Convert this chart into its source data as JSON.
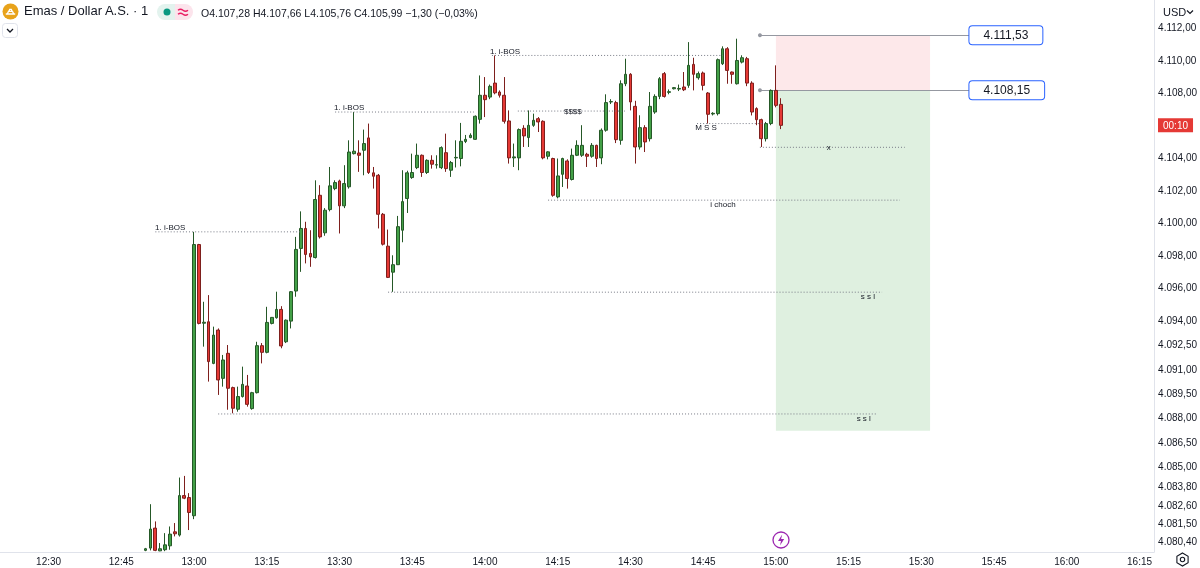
{
  "chart_data": {
    "type": "candlestick",
    "title": "Emas / Dollar A.S. · 1",
    "subtitle": "O4.107,28 H4.107,66 L4.105,76 C4.105,99 −1,30 (−0,03%)",
    "ylabel": "USD",
    "x": [
      12.8333,
      12.85,
      12.8667,
      12.8833,
      12.9,
      12.9167,
      12.9333,
      12.95,
      12.9667,
      12.9833,
      13,
      13.0167,
      13.0333,
      13.05,
      13.0667,
      13.0833,
      13.1,
      13.1167,
      13.1333,
      13.15,
      13.1667,
      13.1833,
      13.2,
      13.2167,
      13.2333,
      13.25,
      13.2667,
      13.2833,
      13.3,
      13.3167,
      13.3333,
      13.35,
      13.3667,
      13.3833,
      13.4,
      13.4167,
      13.4333,
      13.45,
      13.4667,
      13.4833,
      13.5,
      13.5167,
      13.5333,
      13.55,
      13.5667,
      13.5833,
      13.6,
      13.6167,
      13.6333,
      13.65,
      13.6667,
      13.6833,
      13.7,
      13.7167,
      13.7333,
      13.75,
      13.7667,
      13.7833,
      13.8,
      13.8167,
      13.8333,
      13.85,
      13.8667,
      13.8833,
      13.9,
      13.9167,
      13.9333,
      13.95,
      13.9667,
      13.9833,
      14,
      14.0167,
      14.0333,
      14.05,
      14.0667,
      14.0833,
      14.1,
      14.1167,
      14.1333,
      14.15,
      14.1667,
      14.1833,
      14.2,
      14.2167,
      14.2333,
      14.25,
      14.2667,
      14.2833,
      14.3,
      14.3167,
      14.3333,
      14.35,
      14.3667,
      14.3833,
      14.4,
      14.4167,
      14.4333,
      14.45,
      14.4667,
      14.4833,
      14.5,
      14.5167,
      14.5333,
      14.55,
      14.5667,
      14.5833,
      14.6,
      14.6167,
      14.6333,
      14.65,
      14.6667,
      14.6833,
      14.7,
      14.7167,
      14.7333,
      14.75,
      14.7667,
      14.7833,
      14.8,
      14.8167,
      14.8333,
      14.85,
      14.8667,
      14.8833,
      14.9,
      14.9167,
      14.9333,
      14.95,
      14.9667,
      14.9833,
      15,
      15.0167
    ],
    "ohlc": [
      [
        4079.85,
        4080.0,
        4079.8,
        4079.95
      ],
      [
        4079.99,
        4082.69,
        4079.85,
        4081.16
      ],
      [
        4081.22,
        4081.63,
        4079.8,
        4079.85
      ],
      [
        4079.82,
        4080.3,
        4079.8,
        4079.95
      ],
      [
        4079.89,
        4080.91,
        4079.8,
        4080.19
      ],
      [
        4080.13,
        4081.32,
        4079.89,
        4080.85
      ],
      [
        4080.99,
        4081.53,
        4080.71,
        4080.87
      ],
      [
        4080.79,
        4084.33,
        4080.7,
        4083.22
      ],
      [
        4083.22,
        4084.43,
        4083.0,
        4083.06
      ],
      [
        4083.1,
        4083.37,
        4081.1,
        4082.18
      ],
      [
        4081.98,
        4099.44,
        4081.77,
        4098.66
      ],
      [
        4098.66,
        4098.7,
        4093.75,
        4093.81
      ],
      [
        4093.82,
        4095.14,
        4092.38,
        4093.88
      ],
      [
        4093.91,
        4095.55,
        4090.23,
        4091.46
      ],
      [
        4091.35,
        4093.61,
        4091.3,
        4093.09
      ],
      [
        4093.4,
        4093.5,
        4089.41,
        4090.33
      ],
      [
        4090.43,
        4091.87,
        4089.92,
        4091.56
      ],
      [
        4091.97,
        4092.48,
        4088.5,
        4089.82
      ],
      [
        4089.86,
        4089.92,
        4088.28,
        4088.59
      ],
      [
        4088.53,
        4089.92,
        4088.38,
        4089.31
      ],
      [
        4089.31,
        4091.15,
        4089.25,
        4090.06
      ],
      [
        4089.96,
        4090.64,
        4088.69,
        4088.83
      ],
      [
        4088.57,
        4089.6,
        4088.5,
        4089.55
      ],
      [
        4089.55,
        4092.68,
        4089.5,
        4092.44
      ],
      [
        4092.44,
        4092.6,
        4091.35,
        4092.03
      ],
      [
        4092.03,
        4094.83,
        4091.97,
        4093.87
      ],
      [
        4093.81,
        4094.2,
        4093.75,
        4094.18
      ],
      [
        4094.16,
        4095.76,
        4094.1,
        4094.67
      ],
      [
        4094.67,
        4094.87,
        4092.28,
        4092.42
      ],
      [
        4092.68,
        4094.05,
        4092.6,
        4094.01
      ],
      [
        4093.95,
        4095.8,
        4093.5,
        4095.76
      ],
      [
        4095.8,
        4099.13,
        4095.45,
        4098.36
      ],
      [
        4098.42,
        4100.7,
        4096.98,
        4099.65
      ],
      [
        4099.65,
        4100.06,
        4097.5,
        4098.05
      ],
      [
        4098.11,
        4099.54,
        4097.29,
        4097.9
      ],
      [
        4097.86,
        4102.61,
        4097.8,
        4101.43
      ],
      [
        4101.69,
        4102.31,
        4099.03,
        4099.13
      ],
      [
        4099.38,
        4100.9,
        4099.2,
        4100.77
      ],
      [
        4100.81,
        4103.43,
        4100.7,
        4102.27
      ],
      [
        4102.1,
        4102.61,
        4102.0,
        4102.47
      ],
      [
        4102.57,
        4102.65,
        4099.34,
        4101.04
      ],
      [
        4101.04,
        4103.54,
        4100.9,
        4102.41
      ],
      [
        4102.21,
        4105.07,
        4102.1,
        4104.35
      ],
      [
        4104.25,
        4106.81,
        4104.2,
        4104.4
      ],
      [
        4104.29,
        4105.07,
        4103.13,
        4104.15
      ],
      [
        4104.46,
        4105.73,
        4102.92,
        4104.87
      ],
      [
        4105.22,
        4106.1,
        4103.0,
        4103.09
      ],
      [
        4103.07,
        4103.43,
        4102.1,
        4102.86
      ],
      [
        4102.92,
        4103.0,
        4099.65,
        4100.52
      ],
      [
        4100.52,
        4100.6,
        4098.6,
        4098.68
      ],
      [
        4098.56,
        4099.58,
        4096.6,
        4096.64
      ],
      [
        4096.96,
        4098.0,
        4095.75,
        4097.42
      ],
      [
        4097.42,
        4100.42,
        4097.4,
        4099.76
      ],
      [
        4099.54,
        4103.23,
        4098.8,
        4101.3
      ],
      [
        4101.49,
        4103.2,
        4100.6,
        4103.07
      ],
      [
        4102.78,
        4104.25,
        4102.7,
        4103.09
      ],
      [
        4103.39,
        4104.87,
        4103.3,
        4104.15
      ],
      [
        4104.15,
        4104.2,
        4102.82,
        4103.09
      ],
      [
        4103.09,
        4103.9,
        4103.0,
        4103.84
      ],
      [
        4103.84,
        4104.15,
        4103.33,
        4103.6
      ],
      [
        4103.55,
        4104.15,
        4103.33,
        4103.57
      ],
      [
        4103.39,
        4104.7,
        4103.3,
        4104.62
      ],
      [
        4104.31,
        4105.48,
        4103.13,
        4103.33
      ],
      [
        4103.23,
        4103.8,
        4102.82,
        4103.7
      ],
      [
        4103.99,
        4105.07,
        4103.4,
        4104.02
      ],
      [
        4103.95,
        4106.14,
        4103.47,
        4105.01
      ],
      [
        4105.0,
        4105.4,
        4104.9,
        4105.13
      ],
      [
        4105.24,
        4105.5,
        4105.2,
        4105.38
      ],
      [
        4105.13,
        4106.6,
        4105.1,
        4106.55
      ],
      [
        4106.36,
        4109.06,
        4106.1,
        4107.84
      ],
      [
        4107.84,
        4108.96,
        4106.5,
        4107.57
      ],
      [
        4107.73,
        4108.5,
        4107.6,
        4108.39
      ],
      [
        4108.59,
        4110.29,
        4107.9,
        4107.99
      ],
      [
        4108.04,
        4108.14,
        4107.7,
        4107.84
      ],
      [
        4107.84,
        4108.96,
        4106.1,
        4106.24
      ],
      [
        4106.26,
        4106.91,
        4103.64,
        4103.99
      ],
      [
        4103.99,
        4104.87,
        4103.43,
        4104.05
      ],
      [
        4103.99,
        4105.8,
        4103.23,
        4105.73
      ],
      [
        4105.81,
        4106.0,
        4104.66,
        4105.34
      ],
      [
        4105.24,
        4106.91,
        4104.66,
        4105.99
      ],
      [
        4105.99,
        4106.71,
        4105.9,
        4106.3
      ],
      [
        4106.4,
        4106.5,
        4105.58,
        4106.2
      ],
      [
        4106.24,
        4106.3,
        4103.9,
        4103.99
      ],
      [
        4104.09,
        4104.4,
        4103.9,
        4104.36
      ],
      [
        4103.95,
        4104.0,
        4101.6,
        4101.69
      ],
      [
        4101.59,
        4103.95,
        4101.5,
        4102.88
      ],
      [
        4102.98,
        4104.0,
        4102.2,
        4103.95
      ],
      [
        4103.8,
        4103.9,
        4102.1,
        4102.72
      ],
      [
        4102.66,
        4104.56,
        4102.6,
        4104.15
      ],
      [
        4104.15,
        4105.07,
        4104.1,
        4104.76
      ],
      [
        4104.15,
        4106.0,
        4104.05,
        4104.76
      ],
      [
        4104.21,
        4104.3,
        4103.43,
        4104.09
      ],
      [
        4104.09,
        4104.9,
        4104.0,
        4104.76
      ],
      [
        4104.76,
        4104.8,
        4103.43,
        4103.95
      ],
      [
        4103.99,
        4105.8,
        4103.6,
        4105.69
      ],
      [
        4105.69,
        4107.9,
        4105.6,
        4107.39
      ],
      [
        4107.43,
        4107.6,
        4107.3,
        4107.45
      ],
      [
        4107.39,
        4107.5,
        4104.9,
        4105.11
      ],
      [
        4105.07,
        4108.76,
        4104.8,
        4108.55
      ],
      [
        4108.55,
        4110.09,
        4108.4,
        4109.13
      ],
      [
        4109.13,
        4109.2,
        4106.91,
        4107.43
      ],
      [
        4107.16,
        4107.5,
        4103.64,
        4104.66
      ],
      [
        4104.66,
        4106.61,
        4104.5,
        4105.85
      ],
      [
        4105.85,
        4106.0,
        4104.35,
        4104.97
      ],
      [
        4105.17,
        4108.04,
        4105.0,
        4107.16
      ],
      [
        4106.81,
        4107.9,
        4106.7,
        4107.77
      ],
      [
        4107.77,
        4108.96,
        4107.6,
        4108.86
      ],
      [
        4109.17,
        4109.27,
        4107.7,
        4107.77
      ],
      [
        4108.02,
        4108.2,
        4107.9,
        4108.06
      ],
      [
        4108.24,
        4108.35,
        4108.2,
        4108.31
      ],
      [
        4108.22,
        4108.5,
        4108.1,
        4108.26
      ],
      [
        4108.35,
        4109.27,
        4108.1,
        4108.18
      ],
      [
        4108.45,
        4111.11,
        4108.3,
        4109.68
      ],
      [
        4109.74,
        4110.15,
        4108.14,
        4109.13
      ],
      [
        4108.92,
        4109.3,
        4108.8,
        4109.17
      ],
      [
        4109.21,
        4109.3,
        4108.14,
        4108.45
      ],
      [
        4107.98,
        4108.04,
        4106.1,
        4106.67
      ],
      [
        4106.69,
        4106.8,
        4106.6,
        4106.73
      ],
      [
        4106.71,
        4110.1,
        4106.6,
        4110.03
      ],
      [
        4109.78,
        4110.85,
        4109.7,
        4110.7
      ],
      [
        4110.7,
        4110.8,
        4108.55,
        4109.37
      ],
      [
        4109.27,
        4109.3,
        4108.55,
        4109.13
      ],
      [
        4108.55,
        4111.32,
        4108.5,
        4109.98
      ],
      [
        4109.88,
        4110.3,
        4109.8,
        4110.15
      ],
      [
        4110.09,
        4110.2,
        4108.4,
        4108.59
      ],
      [
        4108.59,
        4108.7,
        4106.6,
        4106.81
      ],
      [
        4107.02,
        4107.1,
        4106.0,
        4106.34
      ],
      [
        4106.34,
        4106.4,
        4104.66,
        4105.17
      ],
      [
        4105.17,
        4106.2,
        4105.0,
        4106.1
      ],
      [
        4106.1,
        4108.2,
        4106.0,
        4108.14
      ],
      [
        4108.14,
        4109.68,
        4107.1,
        4107.22
      ],
      [
        4107.28,
        4107.66,
        4105.76,
        4105.99
      ]
    ],
    "colors": [
      "#43a047",
      "#43a047",
      "#e53935",
      "#43a047",
      "#43a047",
      "#43a047",
      "#e53935",
      "#43a047",
      "#e53935",
      "#e53935",
      "#43a047",
      "#e53935",
      "#43a047",
      "#e53935",
      "#43a047",
      "#e53935",
      "#43a047",
      "#e53935",
      "#e53935",
      "#43a047",
      "#43a047",
      "#e53935",
      "#43a047",
      "#43a047",
      "#e53935",
      "#43a047",
      "#43a047",
      "#43a047",
      "#e53935",
      "#43a047",
      "#43a047",
      "#43a047",
      "#43a047",
      "#e53935",
      "#e53935",
      "#43a047",
      "#e53935",
      "#43a047",
      "#43a047",
      "#43a047",
      "#e53935",
      "#43a047",
      "#43a047",
      "#43a047",
      "#e53935",
      "#43a047",
      "#e53935",
      "#e53935",
      "#e53935",
      "#e53935",
      "#e53935",
      "#43a047",
      "#43a047",
      "#43a047",
      "#43a047",
      "#43a047",
      "#43a047",
      "#e53935",
      "#43a047",
      "#e53935",
      "#43a047",
      "#43a047",
      "#e53935",
      "#43a047",
      "#43a047",
      "#43a047",
      "#43a047",
      "#43a047",
      "#43a047",
      "#43a047",
      "#e53935",
      "#43a047",
      "#e53935",
      "#e53935",
      "#e53935",
      "#e53935",
      "#43a047",
      "#43a047",
      "#e53935",
      "#43a047",
      "#43a047",
      "#e53935",
      "#e53935",
      "#43a047",
      "#e53935",
      "#43a047",
      "#43a047",
      "#e53935",
      "#43a047",
      "#43a047",
      "#43a047",
      "#e53935",
      "#43a047",
      "#e53935",
      "#43a047",
      "#43a047",
      "#43a047",
      "#e53935",
      "#43a047",
      "#43a047",
      "#e53935",
      "#e53935",
      "#43a047",
      "#e53935",
      "#43a047",
      "#43a047",
      "#43a047",
      "#e53935",
      "#43a047",
      "#43a047",
      "#43a047",
      "#e53935",
      "#43a047",
      "#e53935",
      "#43a047",
      "#e53935",
      "#e53935",
      "#43a047",
      "#43a047",
      "#43a047",
      "#e53935",
      "#e53935",
      "#43a047",
      "#43a047",
      "#e53935",
      "#e53935",
      "#e53935",
      "#e53935",
      "#43a047",
      "#43a047",
      "#e53935",
      "#e53935"
    ],
    "series": [
      {
        "type": "line",
        "x": [
          12.867,
          13.364
        ],
        "values": [
          4099.44,
          4099.44
        ],
        "color": "#787b86",
        "line_style": "dotted"
      },
      {
        "type": "line",
        "x": [
          13.485,
          13.962
        ],
        "values": [
          4106.81,
          4106.81
        ],
        "color": "#787b86",
        "line_style": "dotted"
      },
      {
        "type": "line",
        "x": [
          14.024,
          14.818
        ],
        "values": [
          4110.29,
          4110.29
        ],
        "color": "#787b86",
        "line_style": "dotted"
      },
      {
        "type": "line",
        "x": [
          14.113,
          14.481
        ],
        "values": [
          4106.87,
          4106.87
        ],
        "color": "#787b86",
        "line_style": "dotted"
      },
      {
        "type": "line",
        "x": [
          14.729,
          14.962
        ],
        "values": [
          4106.1,
          4106.1
        ],
        "color": "#787b86",
        "line_style": "dotted"
      },
      {
        "type": "line",
        "x": [
          14.945,
          15.443
        ],
        "values": [
          4104.64,
          4104.64
        ],
        "color": "#787b86",
        "line_style": "dotted"
      },
      {
        "type": "line",
        "x": [
          14.217,
          15.426
        ],
        "values": [
          4101.39,
          4101.39
        ],
        "color": "#787b86",
        "line_style": "dotted"
      },
      {
        "type": "line",
        "x": [
          13.667,
          15.365
        ],
        "values": [
          4095.73,
          4095.73
        ],
        "color": "#787b86",
        "line_style": "dotted"
      },
      {
        "type": "line",
        "x": [
          13.083,
          15.35
        ],
        "values": [
          4088.24,
          4088.24
        ],
        "color": "#787b86",
        "line_style": "dotted"
      }
    ],
    "bands": [
      {
        "axis": "y",
        "from": 4108.15,
        "to": 4111.53,
        "color": "#fde8ea"
      },
      {
        "axis": "y",
        "from": 4087.2,
        "to": 4108.15,
        "color": "#dff0e0"
      }
    ],
    "ref_lines": [
      {
        "axis": "y",
        "value": 4111.53,
        "label": "4.111,53",
        "color": "#9598a1"
      },
      {
        "axis": "y",
        "value": 4108.15,
        "label": "4.108,15",
        "color": "#9598a1"
      }
    ],
    "annotations": [
      {
        "text": "1. i-BOS",
        "x": 12.918,
        "y": 4099.71
      },
      {
        "text": "1. i-BOS",
        "x": 13.533,
        "y": 4107.08
      },
      {
        "text": "1. i-BOS",
        "x": 14.069,
        "y": 4110.56
      },
      {
        "text": "$$$$",
        "x": 14.302,
        "y": 4106.87
      },
      {
        "text": "M S S",
        "x": 14.76,
        "y": 4105.84
      },
      {
        "text": "x",
        "x": 15.182,
        "y": 4104.64
      },
      {
        "text": "i choch",
        "x": 14.818,
        "y": 4101.12
      },
      {
        "text": "s s l",
        "x": 15.316,
        "y": 4095.46
      },
      {
        "text": "s s l",
        "x": 15.302,
        "y": 4087.97
      },
      "00:10"
    ],
    "xlim": [
      12.333,
      16.3
    ],
    "xticks": [
      {
        "value": 12.5,
        "label": "12:30"
      },
      {
        "value": 12.75,
        "label": "12:45"
      },
      {
        "value": 13,
        "label": "13:00"
      },
      {
        "value": 13.25,
        "label": "13:15"
      },
      {
        "value": 13.5,
        "label": "13:30"
      },
      {
        "value": 13.75,
        "label": "13:45"
      },
      {
        "value": 14,
        "label": "14:00"
      },
      {
        "value": 14.25,
        "label": "14:15"
      },
      {
        "value": 14.5,
        "label": "14:30"
      },
      {
        "value": 14.75,
        "label": "14:45"
      },
      {
        "value": 15,
        "label": "15:00"
      },
      {
        "value": 15.25,
        "label": "15:15"
      },
      {
        "value": 15.5,
        "label": "15:30"
      },
      {
        "value": 15.75,
        "label": "15:45"
      },
      {
        "value": 16,
        "label": "16:00"
      },
      {
        "value": 16.25,
        "label": "16:15"
      }
    ],
    "ylim": [
      4079.75,
      4113.7
    ],
    "yticks": [
      {
        "value": 4080.4,
        "label": "4.080,40"
      },
      {
        "value": 4081.5,
        "label": "4.081,50"
      },
      {
        "value": 4082.6,
        "label": "4.082,60"
      },
      {
        "value": 4083.8,
        "label": "4.083,80"
      },
      {
        "value": 4085,
        "label": "4.085,00"
      },
      {
        "value": 4086.5,
        "label": "4.086,50"
      },
      {
        "value": 4088,
        "label": "4.088,00"
      },
      {
        "value": 4089.5,
        "label": "4.089,50"
      },
      {
        "value": 4091,
        "label": "4.091,00"
      },
      {
        "value": 4092.5,
        "label": "4.092,50"
      },
      {
        "value": 4094,
        "label": "4.094,00"
      },
      {
        "value": 4096,
        "label": "4.096,00"
      },
      {
        "value": 4098,
        "label": "4.098,00"
      },
      {
        "value": 4100,
        "label": "4.100,00"
      },
      {
        "value": 4102,
        "label": "4.102,00"
      },
      {
        "value": 4104,
        "label": "4.104,00"
      },
      {
        "value": 4108,
        "label": "4.108,00"
      },
      {
        "value": 4110,
        "label": "4.110,00"
      },
      {
        "value": 4112,
        "label": "4.112,00"
      }
    ],
    "grid": false
  }
}
